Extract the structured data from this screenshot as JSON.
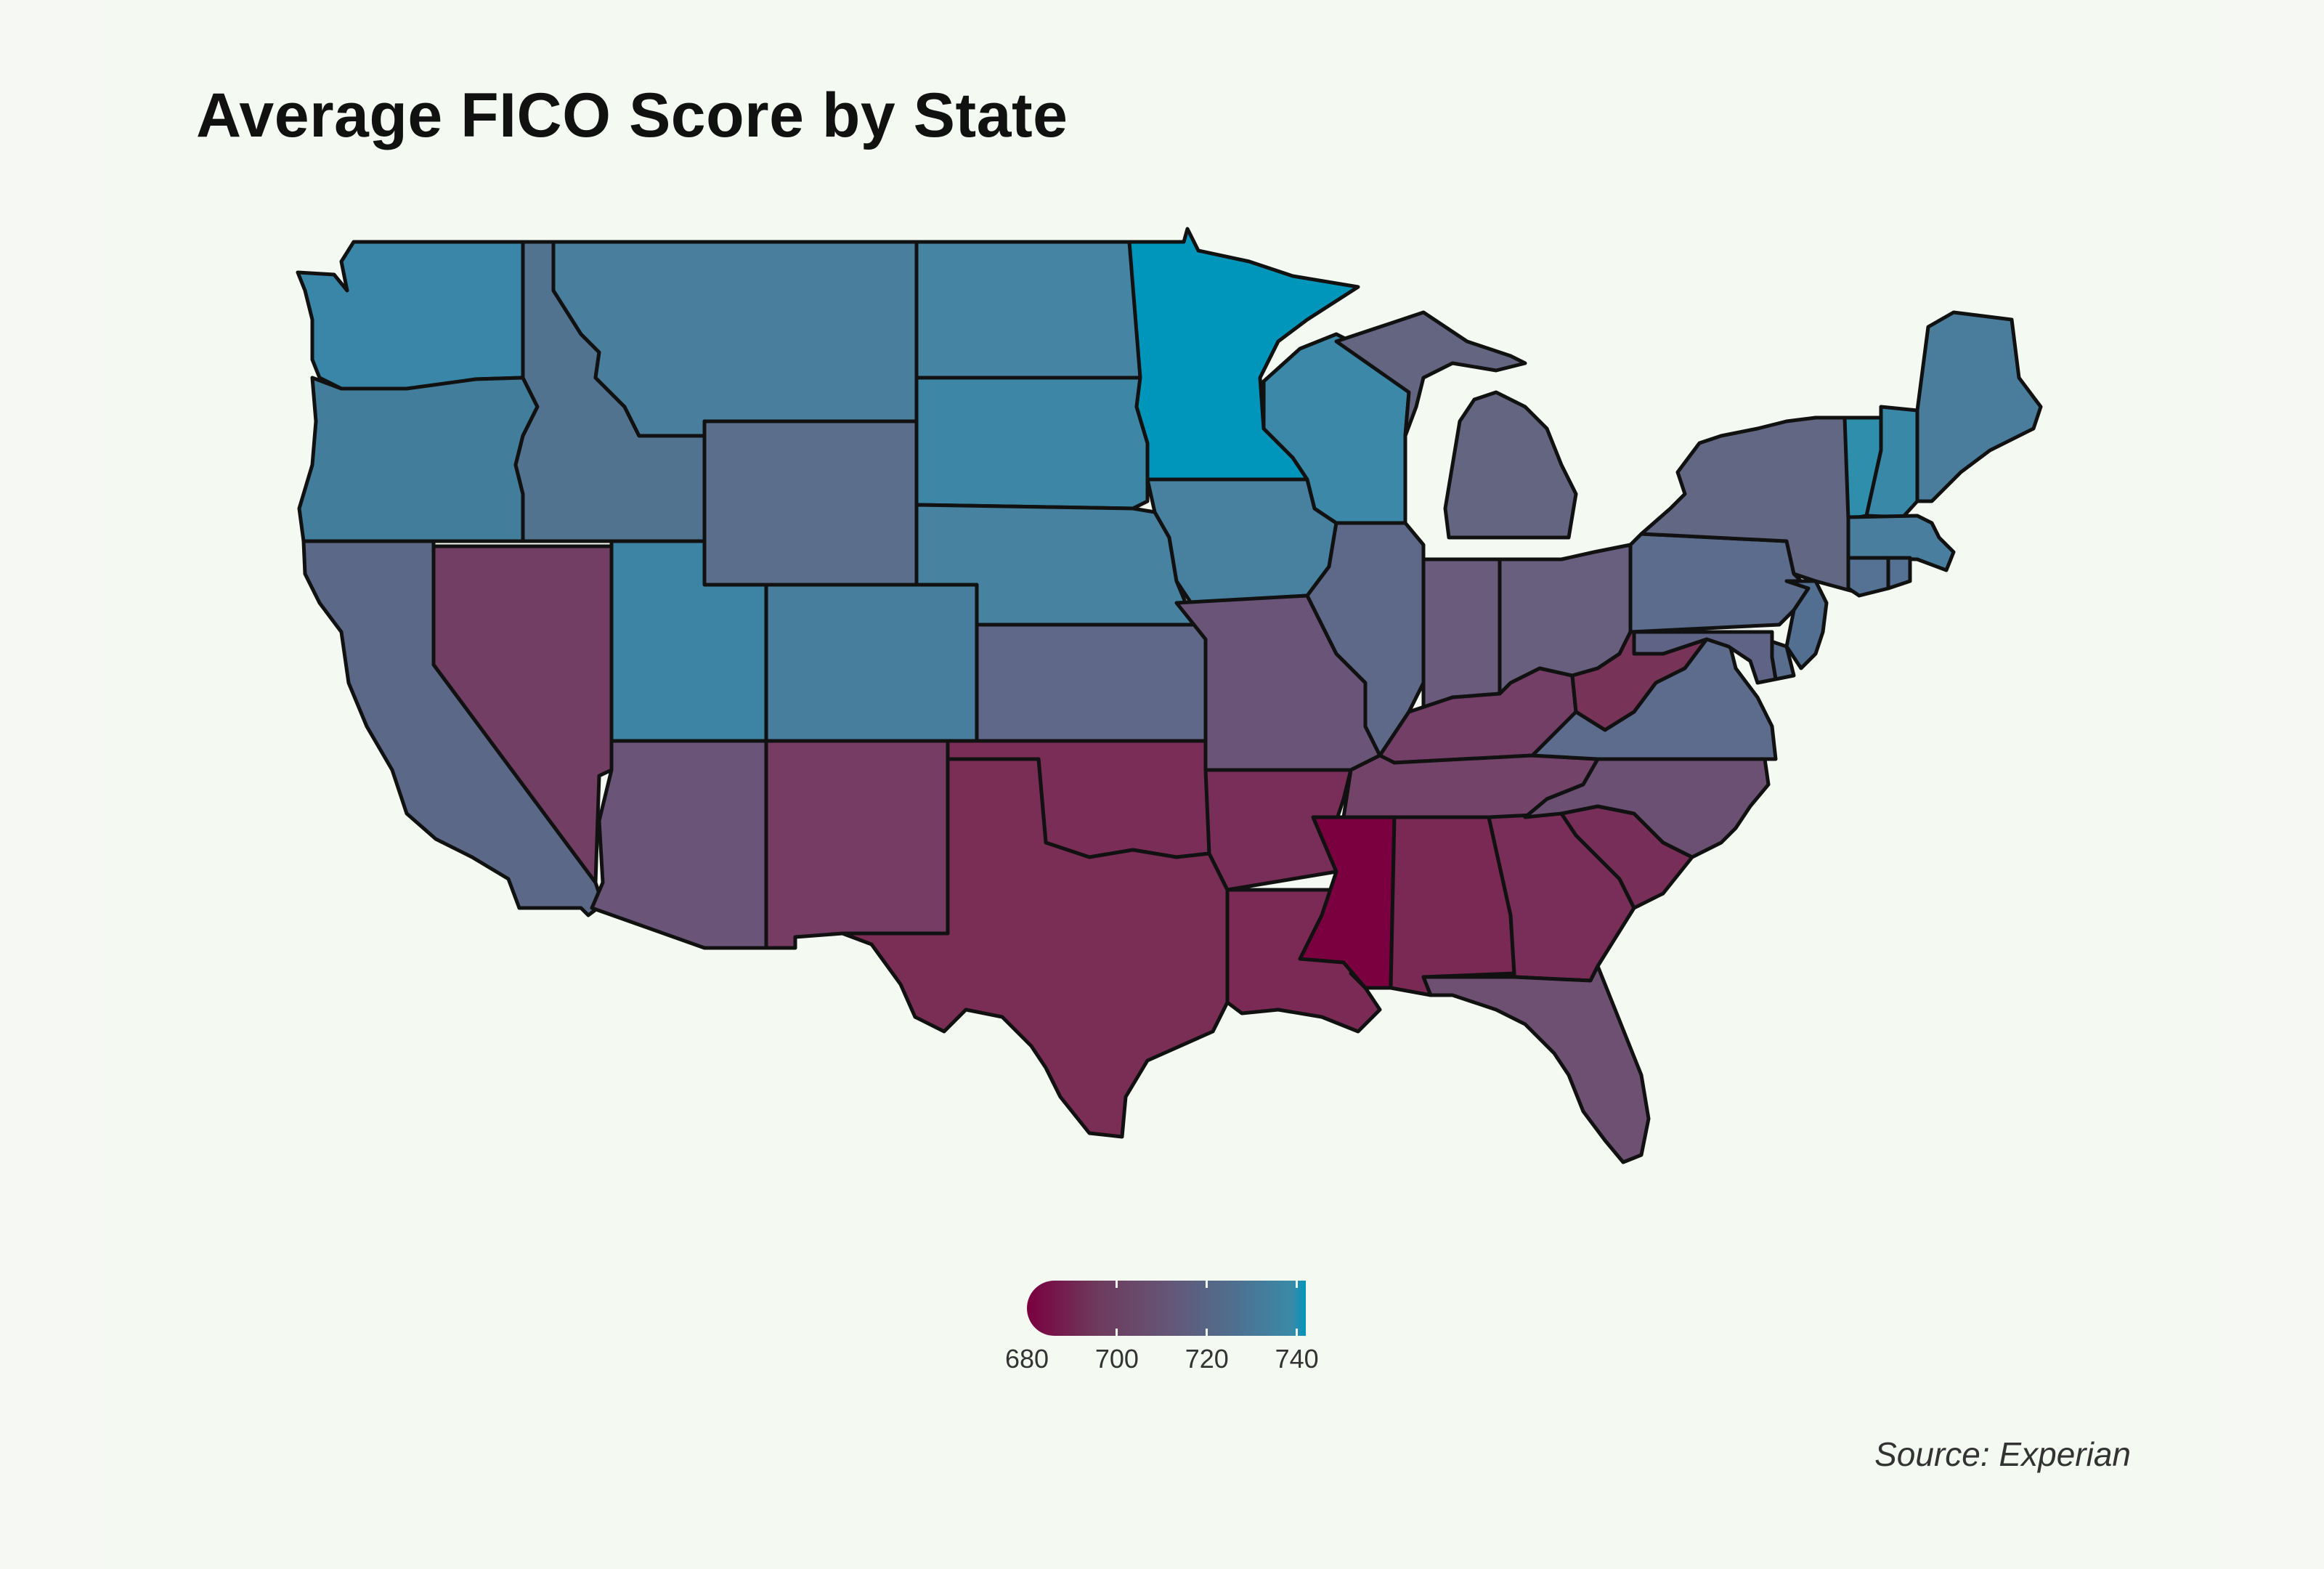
{
  "title": "Average FICO Score by State",
  "source": "Source: Experian",
  "legend": {
    "ticks": [
      "680",
      "700",
      "720",
      "740"
    ],
    "min": 680,
    "max": 742,
    "colors": [
      "#7a0040",
      "#6e3a5c",
      "#655576",
      "#4e7090",
      "#0096bb"
    ]
  },
  "states": [
    {
      "name": "Washington",
      "color": "#3a86a8"
    },
    {
      "name": "Oregon",
      "color": "#427d9c"
    },
    {
      "name": "California",
      "color": "#5b6888"
    },
    {
      "name": "Nevada",
      "color": "#723e64"
    },
    {
      "name": "Idaho",
      "color": "#51738f"
    },
    {
      "name": "Montana",
      "color": "#497f9c"
    },
    {
      "name": "Wyoming",
      "color": "#5b6e8c"
    },
    {
      "name": "Utah",
      "color": "#3d84a4"
    },
    {
      "name": "Colorado",
      "color": "#487e9d"
    },
    {
      "name": "Arizona",
      "color": "#6a5578"
    },
    {
      "name": "New Mexico",
      "color": "#773c63"
    },
    {
      "name": "North Dakota",
      "color": "#4584a2"
    },
    {
      "name": "South Dakota",
      "color": "#3e86a5"
    },
    {
      "name": "Nebraska",
      "color": "#4782a1"
    },
    {
      "name": "Kansas",
      "color": "#5f6888"
    },
    {
      "name": "Oklahoma",
      "color": "#7a2d57"
    },
    {
      "name": "Texas",
      "color": "#7a2d55"
    },
    {
      "name": "Minnesota",
      "color": "#0096bb"
    },
    {
      "name": "Iowa",
      "color": "#4880a0"
    },
    {
      "name": "Missouri",
      "color": "#6a5578"
    },
    {
      "name": "Arkansas",
      "color": "#782e58"
    },
    {
      "name": "Louisiana",
      "color": "#7a2a55"
    },
    {
      "name": "Wisconsin",
      "color": "#3c88a8"
    },
    {
      "name": "Illinois",
      "color": "#5e6888"
    },
    {
      "name": "Mississippi",
      "color": "#7a0040"
    },
    {
      "name": "Michigan",
      "color": "#646580"
    },
    {
      "name": "Indiana",
      "color": "#6a5b7c"
    },
    {
      "name": "Kentucky",
      "color": "#733f66"
    },
    {
      "name": "Tennessee",
      "color": "#734369"
    },
    {
      "name": "Alabama",
      "color": "#7a2854"
    },
    {
      "name": "Ohio",
      "color": "#685f7e"
    },
    {
      "name": "West Virginia",
      "color": "#783358"
    },
    {
      "name": "Georgia",
      "color": "#782e58"
    },
    {
      "name": "Florida",
      "color": "#6e5172"
    },
    {
      "name": "South Carolina",
      "color": "#772f59"
    },
    {
      "name": "North Carolina",
      "color": "#6c5073"
    },
    {
      "name": "Virginia",
      "color": "#5d6c8c"
    },
    {
      "name": "Pennsylvania",
      "color": "#5c6c8c"
    },
    {
      "name": "New York",
      "color": "#626783"
    },
    {
      "name": "Vermont",
      "color": "#2f8eac"
    },
    {
      "name": "New Hampshire",
      "color": "#3a88a8"
    },
    {
      "name": "Maine",
      "color": "#4a7c9c"
    },
    {
      "name": "Massachusetts",
      "color": "#4a7e9e"
    },
    {
      "name": "Connecticut",
      "color": "#557294"
    },
    {
      "name": "Rhode Island",
      "color": "#557294"
    },
    {
      "name": "New Jersey",
      "color": "#526f92"
    },
    {
      "name": "Delaware",
      "color": "#596d8e"
    },
    {
      "name": "Maryland",
      "color": "#5f6486"
    }
  ]
}
